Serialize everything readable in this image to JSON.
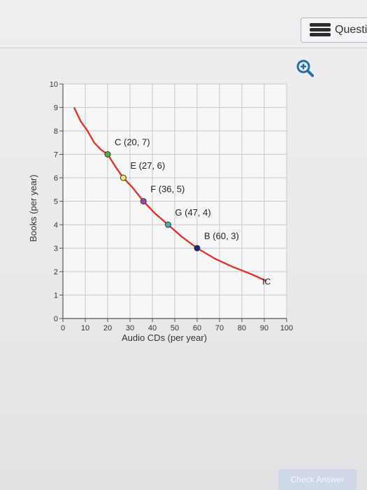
{
  "header": {
    "question_label": "Questi",
    "question_icon": "list-icon"
  },
  "toolbar": {
    "zoom_icon": "zoom-in-icon",
    "accent": "#1f6fb0"
  },
  "chart_data": {
    "type": "line",
    "xlabel": "Audio CDs (per year)",
    "ylabel": "Books (per year)",
    "xlim": [
      0,
      100
    ],
    "ylim": [
      0,
      10
    ],
    "xticks": [
      0,
      10,
      20,
      30,
      40,
      50,
      60,
      70,
      80,
      90,
      100
    ],
    "yticks": [
      0,
      1,
      2,
      3,
      4,
      5,
      6,
      7,
      8,
      9,
      10
    ],
    "grid": true,
    "curve_color": "#e0352b",
    "series": [
      {
        "name": "IC",
        "x": [
          5,
          8,
          11,
          14,
          17,
          20,
          24,
          27,
          31,
          36,
          41,
          47,
          53,
          60,
          68,
          76,
          84,
          91
        ],
        "y": [
          9.0,
          8.4,
          8.0,
          7.5,
          7.2,
          7.0,
          6.4,
          6.0,
          5.6,
          5.0,
          4.5,
          4.0,
          3.5,
          3.0,
          2.55,
          2.2,
          1.9,
          1.6
        ]
      }
    ],
    "points": [
      {
        "label": "C (20, 7)",
        "x": 20,
        "y": 7,
        "color": "#4caf3a"
      },
      {
        "label": "E (27, 6)",
        "x": 27,
        "y": 6,
        "color": "#f3ea5d"
      },
      {
        "label": "F (36, 5)",
        "x": 36,
        "y": 5,
        "color": "#a146b8"
      },
      {
        "label": "G (47, 4)",
        "x": 47,
        "y": 4,
        "color": "#47a9b6"
      },
      {
        "label": "B (60, 3)",
        "x": 60,
        "y": 3,
        "color": "#1c1f8c"
      }
    ],
    "annotations": [
      {
        "text": "IC",
        "x": 91,
        "y": 1.6
      }
    ]
  },
  "footer": {
    "check_answer_label": "Check Answer"
  }
}
